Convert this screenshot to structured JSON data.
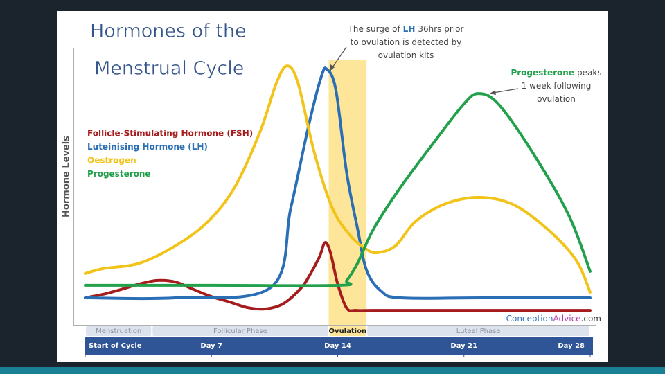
{
  "chart_data": {
    "type": "line",
    "title": [
      "Hormones of the",
      "Menstrual Cycle"
    ],
    "y_label": "Hormone Levels",
    "xlim": [
      0,
      28
    ],
    "ylim": [
      0,
      100
    ],
    "xticks": [
      {
        "value": 0,
        "label": "Start of Cycle"
      },
      {
        "value": 7,
        "label": "Day 7"
      },
      {
        "value": 14,
        "label": "Day 14"
      },
      {
        "value": 21,
        "label": "Day 21"
      },
      {
        "value": 28,
        "label": "Day 28"
      }
    ],
    "phases": [
      {
        "label": "Menstruation",
        "start": 0,
        "end": 3.7
      },
      {
        "label": "Follicular Phase",
        "start": 3.7,
        "end": 13.5
      },
      {
        "label": "Ovulation",
        "start": 13.5,
        "end": 15.6,
        "highlight": "#fde59a"
      },
      {
        "label": "Luteal Phase",
        "start": 15.6,
        "end": 28
      }
    ],
    "series": [
      {
        "name": "Follicle-Stimulating Hormone (FSH)",
        "color": "#a51c1c",
        "x": [
          0,
          1,
          2,
          3,
          4,
          5,
          6,
          7,
          8,
          9,
          10,
          11,
          12,
          12.5,
          13,
          13.3,
          13.6,
          14,
          14.5,
          15,
          16,
          20,
          24,
          28
        ],
        "values": [
          8.1,
          9.5,
          11.4,
          13.5,
          14.9,
          14.3,
          11.4,
          8.6,
          6.5,
          4.3,
          3.8,
          5.9,
          12.2,
          17.6,
          24.3,
          29.7,
          25.7,
          13.5,
          4.1,
          3.2,
          3.2,
          3.2,
          3.2,
          3.2
        ]
      },
      {
        "name": "Luteinising Hormone (LH)",
        "color": "#2a6fb5",
        "x": [
          0,
          5,
          10.3,
          11.4,
          12.4,
          13.1,
          13.4,
          13.9,
          14.5,
          15.1,
          15.6,
          16.4,
          17.5,
          22,
          28
        ],
        "values": [
          8.1,
          8.1,
          12.2,
          43.2,
          75.7,
          94.6,
          97.3,
          89.2,
          56.8,
          35.1,
          18.9,
          10.8,
          8.1,
          8.1,
          8.1
        ]
      },
      {
        "name": "Oestrogen",
        "color": "#f2c318",
        "x": [
          0,
          1,
          3,
          5,
          6.8,
          8.3,
          9.7,
          10.6,
          11.2,
          11.8,
          12.7,
          13.7,
          14.7,
          15.6,
          16.2,
          17.2,
          18.3,
          19.9,
          21.8,
          23.7,
          25.6,
          27.2,
          28
        ],
        "values": [
          17.6,
          19.5,
          21.6,
          28.4,
          37.8,
          51.4,
          73,
          91.9,
          98.6,
          91.9,
          64.9,
          43.2,
          32.4,
          27,
          25.7,
          28.4,
          37.8,
          44.6,
          47.3,
          44.6,
          35.1,
          23,
          10.3
        ]
      },
      {
        "name": "Progesterone",
        "color": "#22a04b",
        "x": [
          0,
          7,
          14.1,
          14.5,
          15.1,
          16,
          17.5,
          19.5,
          21,
          21.8,
          22.9,
          24.8,
          26.8,
          28
        ],
        "values": [
          13,
          13,
          13,
          14.9,
          21.6,
          35.1,
          51.4,
          70.3,
          83.8,
          87.8,
          83.8,
          64.9,
          40.5,
          18.4
        ]
      }
    ],
    "annotations": [
      {
        "lines": [
          [
            "The surge of",
            "LH",
            "36hrs prior"
          ],
          [
            "to ovulation is detected by"
          ],
          [
            "ovulation kits"
          ]
        ]
      },
      {
        "lines": [
          [
            "Progesterone",
            "peaks"
          ],
          [
            "1 week following"
          ],
          [
            "ovulation"
          ]
        ]
      }
    ],
    "source": [
      "Conception",
      "Advice",
      ".com"
    ]
  }
}
